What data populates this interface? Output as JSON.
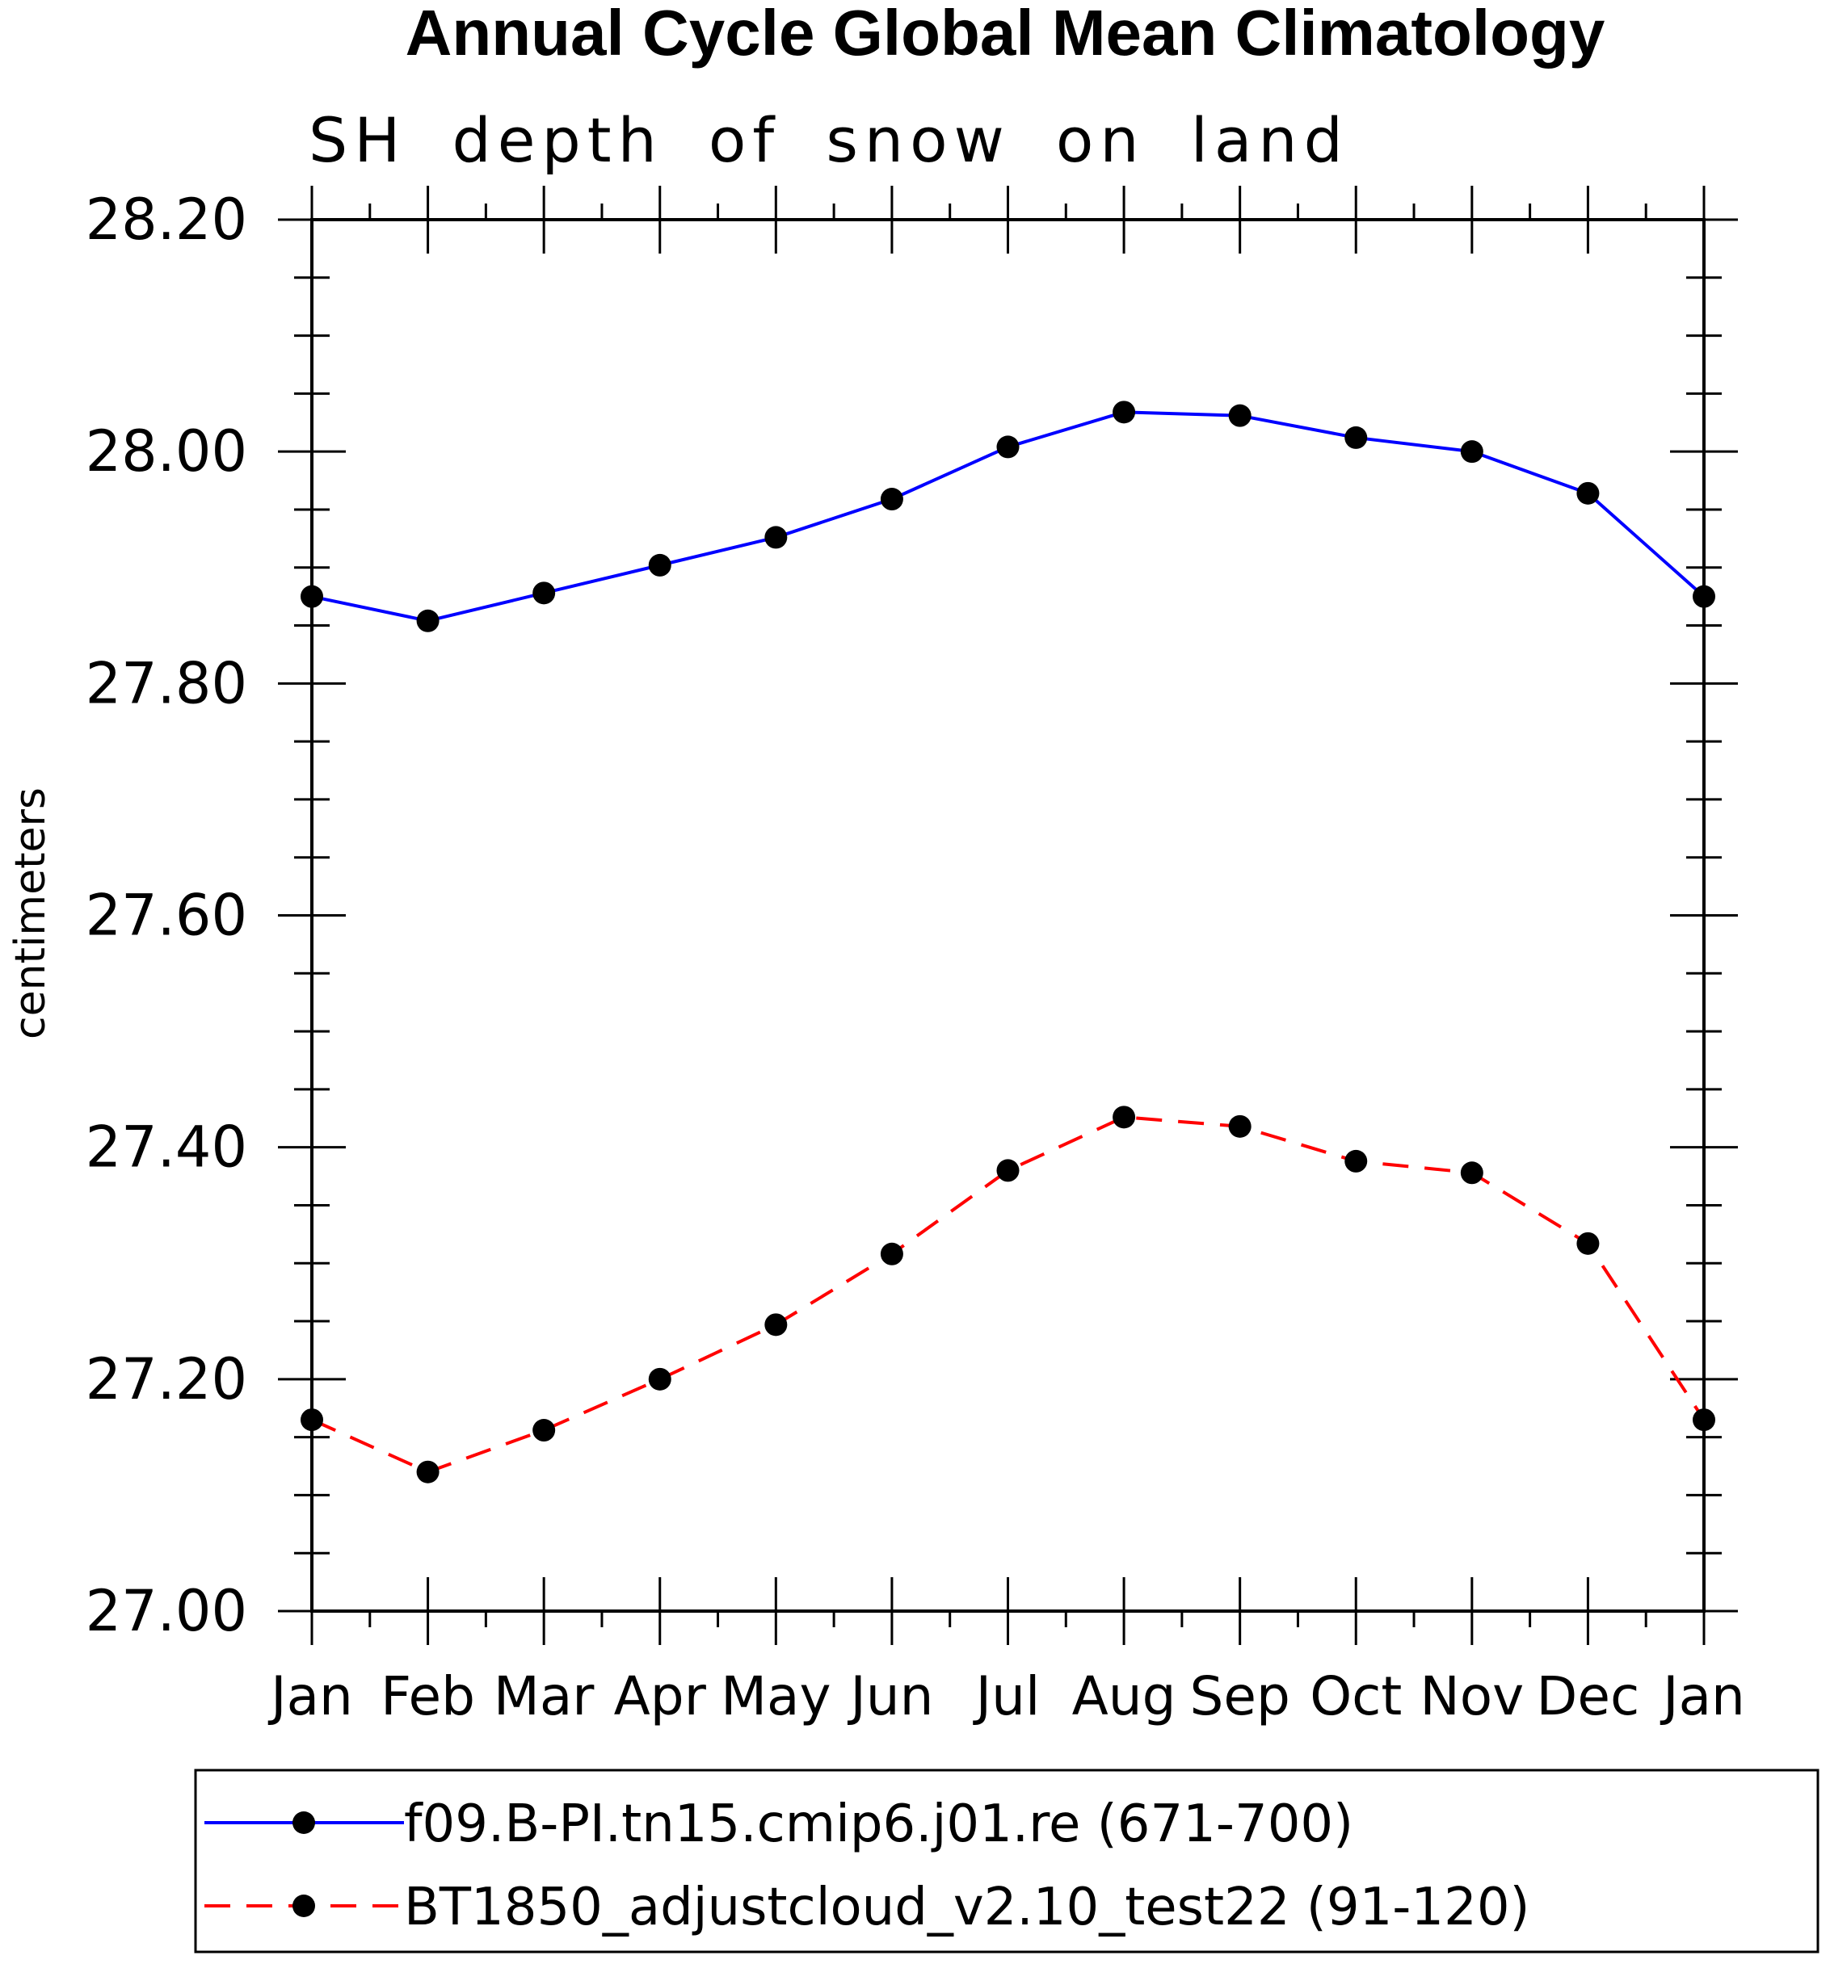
{
  "chart_data": {
    "type": "line",
    "title": "Annual Cycle Global Mean Climatology",
    "subtitle": "SH depth of snow on land",
    "xlabel": "",
    "ylabel": "centimeters",
    "categories": [
      "Jan",
      "Feb",
      "Mar",
      "Apr",
      "May",
      "Jun",
      "Jul",
      "Aug",
      "Sep",
      "Oct",
      "Nov",
      "Dec",
      "Jan"
    ],
    "ylim": [
      27.0,
      28.2
    ],
    "yticks": [
      "27.00",
      "27.20",
      "27.40",
      "27.60",
      "27.80",
      "28.00",
      "28.20"
    ],
    "grid": false,
    "legend_position": "bottom",
    "series": [
      {
        "name": "f09.B-PI.tn15.cmip6.j01.re (671-700)",
        "color": "#0000ff",
        "line_style": "solid",
        "marker": "filled-circle",
        "values": [
          27.875,
          27.854,
          27.878,
          27.902,
          27.926,
          27.959,
          28.004,
          28.034,
          28.031,
          28.012,
          28.0,
          27.964,
          27.875
        ]
      },
      {
        "name": "BT1850_adjustcloud_v2.10_test22 (91-120)",
        "color": "#ff0000",
        "line_style": "dashed",
        "marker": "filled-circle",
        "values": [
          27.165,
          27.12,
          27.156,
          27.2,
          27.247,
          27.308,
          27.38,
          27.426,
          27.418,
          27.388,
          27.378,
          27.317,
          27.165
        ]
      }
    ]
  }
}
